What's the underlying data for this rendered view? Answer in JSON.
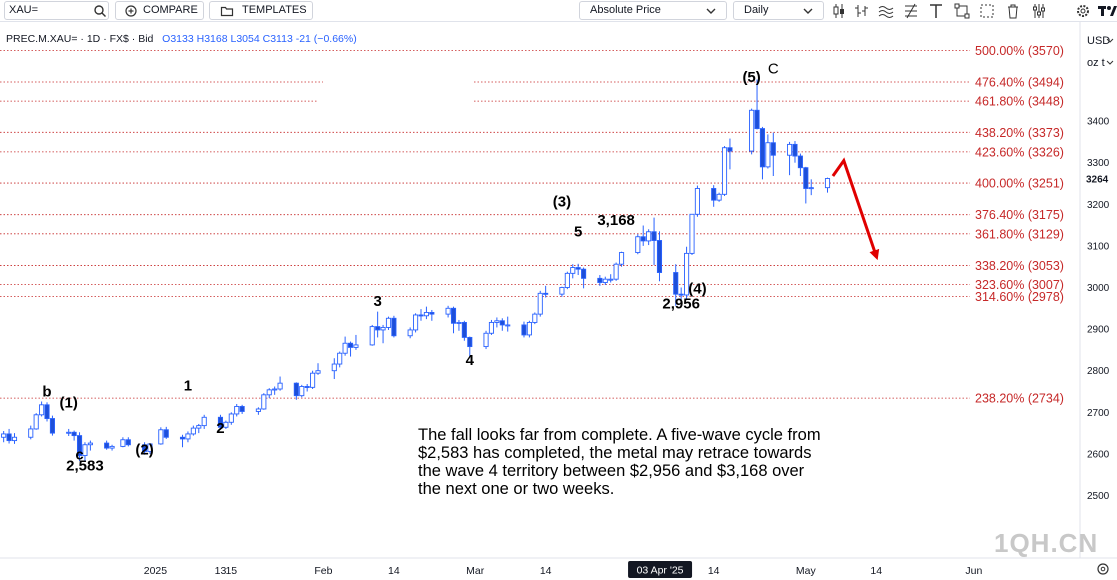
{
  "toolbar": {
    "symbol": "XAU=",
    "compare_label": "COMPARE",
    "templates_label": "TEMPLATES",
    "price_mode": "Absolute Price",
    "interval": "Daily",
    "currency": "USD",
    "unit": "oz t"
  },
  "legend": {
    "symbol": "PREC.M.XAU=",
    "interval": "1D",
    "source": "FX$",
    "side": "Bid",
    "open": "O3133",
    "high": "H3168",
    "low": "L3054",
    "close": "C3113",
    "change": "-21 (−0.66%)"
  },
  "note": {
    "line1": "The fall looks far from complete.  A five-wave cycle from",
    "line2": "$2,583 has completed, the metal may retrace towards",
    "line3": "the wave 4 territory between $2,956 and $3,168 over",
    "line4": "the next one or two weeks."
  },
  "watermark": "1QH.CN",
  "chart_data": {
    "type": "candlestick",
    "y_axis": {
      "range": [
        2520,
        3620
      ],
      "ticks": [
        2500,
        2600,
        2700,
        2800,
        2900,
        3000,
        3100,
        3200,
        3300,
        3400
      ],
      "last_price_label": "3264"
    },
    "x_axis": {
      "ticks": [
        {
          "label": "13",
          "x_date": "2025-01-13"
        },
        {
          "label": "2025",
          "x_date": "2025-01-01"
        },
        {
          "label": "15",
          "x_date": "2025-01-15"
        },
        {
          "label": "Feb",
          "x_date": "2025-02-01"
        },
        {
          "label": "14",
          "x_date": "2025-02-14"
        },
        {
          "label": "Mar",
          "x_date": "2025-03-01"
        },
        {
          "label": "14",
          "x_date": "2025-03-14"
        },
        {
          "label": "03 Apr '25",
          "x_date": "2025-04-03"
        },
        {
          "label": "14",
          "x_date": "2025-04-14"
        },
        {
          "label": "May",
          "x_date": "2025-05-01"
        },
        {
          "label": "14",
          "x_date": "2025-05-14"
        },
        {
          "label": "Jun",
          "x_date": "2025-06-01"
        }
      ]
    },
    "fib_levels": [
      {
        "label": "500.00% (3570)",
        "price": 3570
      },
      {
        "label": "476.40% (3494)",
        "price": 3494
      },
      {
        "label": "461.80% (3448)",
        "price": 3448
      },
      {
        "label": "438.20% (3373)",
        "price": 3373
      },
      {
        "label": "423.60% (3326)",
        "price": 3326
      },
      {
        "label": "400.00% (3251)",
        "price": 3251
      },
      {
        "label": "376.40% (3175)",
        "price": 3175
      },
      {
        "label": "361.80% (3129)",
        "price": 3129
      },
      {
        "label": "338.20% (3053)",
        "price": 3053
      },
      {
        "label": "323.60% (3007)",
        "price": 3007
      },
      {
        "label": "314.60% (2978)",
        "price": 2978
      },
      {
        "label": "238.20% (2734)",
        "price": 2734
      }
    ],
    "wave_labels": [
      {
        "text": "b",
        "date": "2024-12-12",
        "price": 2738
      },
      {
        "text": "(1)",
        "date": "2024-12-16",
        "price": 2712
      },
      {
        "text": "c",
        "date": "2024-12-18",
        "price": 2587
      },
      {
        "text": "2,583",
        "date": "2024-12-19",
        "price": 2560
      },
      {
        "text": "(2)",
        "date": "2024-12-30",
        "price": 2598
      },
      {
        "text": "1",
        "date": "2025-01-07",
        "price": 2752
      },
      {
        "text": "2",
        "date": "2025-01-13",
        "price": 2650
      },
      {
        "text": "3",
        "date": "2025-02-11",
        "price": 2955
      },
      {
        "text": "4",
        "date": "2025-02-28",
        "price": 2814
      },
      {
        "text": "(3)",
        "date": "2025-03-17",
        "price": 3195
      },
      {
        "text": "5",
        "date": "2025-03-20",
        "price": 3122
      },
      {
        "text": "3,168",
        "date": "2025-03-27",
        "price": 3150
      },
      {
        "text": "2,956",
        "date": "2025-04-08",
        "price": 2950
      },
      {
        "text": "(4)",
        "date": "2025-04-11",
        "price": 2985
      },
      {
        "text": "(5)",
        "date": "2025-04-21",
        "price": 3494
      },
      {
        "text": "C",
        "date": "2025-04-25",
        "price": 3515
      }
    ],
    "candles": [
      {
        "d": "2024-12-04",
        "o": 2640,
        "h": 2655,
        "l": 2628,
        "c": 2648
      },
      {
        "d": "2024-12-05",
        "o": 2648,
        "h": 2660,
        "l": 2625,
        "c": 2632
      },
      {
        "d": "2024-12-06",
        "o": 2632,
        "h": 2650,
        "l": 2624,
        "c": 2640
      },
      {
        "d": "2024-12-09",
        "o": 2640,
        "h": 2668,
        "l": 2635,
        "c": 2660
      },
      {
        "d": "2024-12-10",
        "o": 2660,
        "h": 2698,
        "l": 2658,
        "c": 2694
      },
      {
        "d": "2024-12-11",
        "o": 2694,
        "h": 2726,
        "l": 2690,
        "c": 2718
      },
      {
        "d": "2024-12-12",
        "o": 2718,
        "h": 2724,
        "l": 2678,
        "c": 2685
      },
      {
        "d": "2024-12-13",
        "o": 2685,
        "h": 2692,
        "l": 2644,
        "c": 2650
      },
      {
        "d": "2024-12-16",
        "o": 2650,
        "h": 2660,
        "l": 2643,
        "c": 2652
      },
      {
        "d": "2024-12-17",
        "o": 2652,
        "h": 2656,
        "l": 2632,
        "c": 2644
      },
      {
        "d": "2024-12-18",
        "o": 2644,
        "h": 2652,
        "l": 2583,
        "c": 2596
      },
      {
        "d": "2024-12-19",
        "o": 2596,
        "h": 2628,
        "l": 2584,
        "c": 2622
      },
      {
        "d": "2024-12-20",
        "o": 2622,
        "h": 2632,
        "l": 2608,
        "c": 2626
      },
      {
        "d": "2024-12-23",
        "o": 2626,
        "h": 2632,
        "l": 2610,
        "c": 2614
      },
      {
        "d": "2024-12-24",
        "o": 2614,
        "h": 2622,
        "l": 2608,
        "c": 2618
      },
      {
        "d": "2024-12-26",
        "o": 2618,
        "h": 2640,
        "l": 2616,
        "c": 2634
      },
      {
        "d": "2024-12-27",
        "o": 2634,
        "h": 2640,
        "l": 2618,
        "c": 2622
      },
      {
        "d": "2024-12-30",
        "o": 2622,
        "h": 2628,
        "l": 2598,
        "c": 2606
      },
      {
        "d": "2024-12-31",
        "o": 2606,
        "h": 2626,
        "l": 2600,
        "c": 2624
      },
      {
        "d": "2025-01-02",
        "o": 2624,
        "h": 2664,
        "l": 2622,
        "c": 2658
      },
      {
        "d": "2025-01-03",
        "o": 2658,
        "h": 2665,
        "l": 2636,
        "c": 2640
      },
      {
        "d": "2025-01-06",
        "o": 2640,
        "h": 2646,
        "l": 2616,
        "c": 2636
      },
      {
        "d": "2025-01-07",
        "o": 2636,
        "h": 2654,
        "l": 2628,
        "c": 2648
      },
      {
        "d": "2025-01-08",
        "o": 2648,
        "h": 2668,
        "l": 2644,
        "c": 2662
      },
      {
        "d": "2025-01-09",
        "o": 2662,
        "h": 2672,
        "l": 2650,
        "c": 2668
      },
      {
        "d": "2025-01-10",
        "o": 2668,
        "h": 2694,
        "l": 2660,
        "c": 2688
      },
      {
        "d": "2025-01-13",
        "o": 2688,
        "h": 2694,
        "l": 2660,
        "c": 2664
      },
      {
        "d": "2025-01-14",
        "o": 2664,
        "h": 2680,
        "l": 2660,
        "c": 2676
      },
      {
        "d": "2025-01-15",
        "o": 2676,
        "h": 2700,
        "l": 2670,
        "c": 2696
      },
      {
        "d": "2025-01-16",
        "o": 2696,
        "h": 2720,
        "l": 2690,
        "c": 2714
      },
      {
        "d": "2025-01-17",
        "o": 2714,
        "h": 2718,
        "l": 2696,
        "c": 2702
      },
      {
        "d": "2025-01-20",
        "o": 2702,
        "h": 2712,
        "l": 2694,
        "c": 2708
      },
      {
        "d": "2025-01-21",
        "o": 2708,
        "h": 2746,
        "l": 2706,
        "c": 2742
      },
      {
        "d": "2025-01-22",
        "o": 2742,
        "h": 2758,
        "l": 2734,
        "c": 2754
      },
      {
        "d": "2025-01-23",
        "o": 2754,
        "h": 2762,
        "l": 2742,
        "c": 2756
      },
      {
        "d": "2025-01-24",
        "o": 2756,
        "h": 2786,
        "l": 2752,
        "c": 2770
      },
      {
        "d": "2025-01-27",
        "o": 2770,
        "h": 2772,
        "l": 2730,
        "c": 2740
      },
      {
        "d": "2025-01-28",
        "o": 2740,
        "h": 2766,
        "l": 2736,
        "c": 2762
      },
      {
        "d": "2025-01-29",
        "o": 2762,
        "h": 2768,
        "l": 2750,
        "c": 2760
      },
      {
        "d": "2025-01-30",
        "o": 2760,
        "h": 2800,
        "l": 2756,
        "c": 2794
      },
      {
        "d": "2025-01-31",
        "o": 2794,
        "h": 2818,
        "l": 2790,
        "c": 2800
      },
      {
        "d": "2025-02-03",
        "o": 2800,
        "h": 2830,
        "l": 2780,
        "c": 2816
      },
      {
        "d": "2025-02-04",
        "o": 2816,
        "h": 2846,
        "l": 2808,
        "c": 2842
      },
      {
        "d": "2025-02-05",
        "o": 2842,
        "h": 2882,
        "l": 2836,
        "c": 2866
      },
      {
        "d": "2025-02-06",
        "o": 2866,
        "h": 2870,
        "l": 2834,
        "c": 2856
      },
      {
        "d": "2025-02-07",
        "o": 2856,
        "h": 2886,
        "l": 2850,
        "c": 2862
      },
      {
        "d": "2025-02-10",
        "o": 2862,
        "h": 2910,
        "l": 2860,
        "c": 2906
      },
      {
        "d": "2025-02-11",
        "o": 2906,
        "h": 2942,
        "l": 2880,
        "c": 2898
      },
      {
        "d": "2025-02-12",
        "o": 2898,
        "h": 2910,
        "l": 2866,
        "c": 2904
      },
      {
        "d": "2025-02-13",
        "o": 2904,
        "h": 2930,
        "l": 2898,
        "c": 2926
      },
      {
        "d": "2025-02-14",
        "o": 2926,
        "h": 2932,
        "l": 2880,
        "c": 2884
      },
      {
        "d": "2025-02-17",
        "o": 2884,
        "h": 2904,
        "l": 2878,
        "c": 2898
      },
      {
        "d": "2025-02-18",
        "o": 2898,
        "h": 2938,
        "l": 2892,
        "c": 2934
      },
      {
        "d": "2025-02-19",
        "o": 2934,
        "h": 2948,
        "l": 2920,
        "c": 2932
      },
      {
        "d": "2025-02-20",
        "o": 2932,
        "h": 2954,
        "l": 2924,
        "c": 2940
      },
      {
        "d": "2025-02-21",
        "o": 2940,
        "h": 2946,
        "l": 2920,
        "c": 2936
      },
      {
        "d": "2025-02-24",
        "o": 2936,
        "h": 2956,
        "l": 2928,
        "c": 2950
      },
      {
        "d": "2025-02-25",
        "o": 2950,
        "h": 2954,
        "l": 2890,
        "c": 2914
      },
      {
        "d": "2025-02-26",
        "o": 2914,
        "h": 2922,
        "l": 2896,
        "c": 2916
      },
      {
        "d": "2025-02-27",
        "o": 2916,
        "h": 2920,
        "l": 2872,
        "c": 2880
      },
      {
        "d": "2025-02-28",
        "o": 2880,
        "h": 2882,
        "l": 2832,
        "c": 2858
      },
      {
        "d": "2025-03-03",
        "o": 2858,
        "h": 2896,
        "l": 2852,
        "c": 2890
      },
      {
        "d": "2025-03-04",
        "o": 2890,
        "h": 2922,
        "l": 2886,
        "c": 2916
      },
      {
        "d": "2025-03-05",
        "o": 2916,
        "h": 2928,
        "l": 2904,
        "c": 2920
      },
      {
        "d": "2025-03-06",
        "o": 2920,
        "h": 2926,
        "l": 2896,
        "c": 2910
      },
      {
        "d": "2025-03-07",
        "o": 2910,
        "h": 2930,
        "l": 2894,
        "c": 2910
      },
      {
        "d": "2025-03-10",
        "o": 2910,
        "h": 2918,
        "l": 2880,
        "c": 2886
      },
      {
        "d": "2025-03-11",
        "o": 2886,
        "h": 2920,
        "l": 2880,
        "c": 2916
      },
      {
        "d": "2025-03-12",
        "o": 2916,
        "h": 2940,
        "l": 2912,
        "c": 2936
      },
      {
        "d": "2025-03-13",
        "o": 2936,
        "h": 2992,
        "l": 2930,
        "c": 2986
      },
      {
        "d": "2025-03-14",
        "o": 2986,
        "h": 3004,
        "l": 2976,
        "c": 2984
      },
      {
        "d": "2025-03-17",
        "o": 2984,
        "h": 3002,
        "l": 2978,
        "c": 3000
      },
      {
        "d": "2025-03-18",
        "o": 3000,
        "h": 3038,
        "l": 2996,
        "c": 3034
      },
      {
        "d": "2025-03-19",
        "o": 3034,
        "h": 3056,
        "l": 3022,
        "c": 3048
      },
      {
        "d": "2025-03-20",
        "o": 3048,
        "h": 3057,
        "l": 3030,
        "c": 3044
      },
      {
        "d": "2025-03-21",
        "o": 3044,
        "h": 3048,
        "l": 2998,
        "c": 3022
      },
      {
        "d": "2025-03-24",
        "o": 3022,
        "h": 3030,
        "l": 3004,
        "c": 3012
      },
      {
        "d": "2025-03-25",
        "o": 3012,
        "h": 3026,
        "l": 3006,
        "c": 3020
      },
      {
        "d": "2025-03-26",
        "o": 3020,
        "h": 3032,
        "l": 3012,
        "c": 3020
      },
      {
        "d": "2025-03-27",
        "o": 3020,
        "h": 3060,
        "l": 3016,
        "c": 3056
      },
      {
        "d": "2025-03-28",
        "o": 3056,
        "h": 3086,
        "l": 3050,
        "c": 3084
      },
      {
        "d": "2025-03-31",
        "o": 3084,
        "h": 3128,
        "l": 3080,
        "c": 3122
      },
      {
        "d": "2025-04-01",
        "o": 3122,
        "h": 3149,
        "l": 3100,
        "c": 3112
      },
      {
        "d": "2025-04-02",
        "o": 3112,
        "h": 3140,
        "l": 3102,
        "c": 3134
      },
      {
        "d": "2025-04-03",
        "o": 3134,
        "h": 3168,
        "l": 3054,
        "c": 3113
      },
      {
        "d": "2025-04-04",
        "o": 3113,
        "h": 3135,
        "l": 3015,
        "c": 3036
      },
      {
        "d": "2025-04-07",
        "o": 3036,
        "h": 3056,
        "l": 2956,
        "c": 2984
      },
      {
        "d": "2025-04-08",
        "o": 2984,
        "h": 3000,
        "l": 2970,
        "c": 2982
      },
      {
        "d": "2025-04-09",
        "o": 2982,
        "h": 3098,
        "l": 2970,
        "c": 3082
      },
      {
        "d": "2025-04-10",
        "o": 3082,
        "h": 3176,
        "l": 3078,
        "c": 3176
      },
      {
        "d": "2025-04-11",
        "o": 3176,
        "h": 3245,
        "l": 3170,
        "c": 3238
      },
      {
        "d": "2025-04-14",
        "o": 3238,
        "h": 3246,
        "l": 3194,
        "c": 3210
      },
      {
        "d": "2025-04-15",
        "o": 3210,
        "h": 3228,
        "l": 3206,
        "c": 3224
      },
      {
        "d": "2025-04-16",
        "o": 3224,
        "h": 3340,
        "l": 3220,
        "c": 3336
      },
      {
        "d": "2025-04-17",
        "o": 3336,
        "h": 3358,
        "l": 3284,
        "c": 3328
      },
      {
        "d": "2025-04-21",
        "o": 3328,
        "h": 3430,
        "l": 3320,
        "c": 3426
      },
      {
        "d": "2025-04-22",
        "o": 3426,
        "h": 3500,
        "l": 3380,
        "c": 3382
      },
      {
        "d": "2025-04-23",
        "o": 3382,
        "h": 3386,
        "l": 3260,
        "c": 3290
      },
      {
        "d": "2025-04-24",
        "o": 3290,
        "h": 3368,
        "l": 3286,
        "c": 3348
      },
      {
        "d": "2025-04-25",
        "o": 3348,
        "h": 3372,
        "l": 3268,
        "c": 3318
      },
      {
        "d": "2025-04-28",
        "o": 3318,
        "h": 3350,
        "l": 3270,
        "c": 3344
      },
      {
        "d": "2025-04-29",
        "o": 3344,
        "h": 3352,
        "l": 3300,
        "c": 3316
      },
      {
        "d": "2025-04-30",
        "o": 3316,
        "h": 3322,
        "l": 3268,
        "c": 3288
      },
      {
        "d": "2025-05-01",
        "o": 3288,
        "h": 3290,
        "l": 3202,
        "c": 3238
      },
      {
        "d": "2025-05-02",
        "o": 3238,
        "h": 3260,
        "l": 3222,
        "c": 3240
      },
      {
        "d": "2025-05-05",
        "o": 3240,
        "h": 3264,
        "l": 3228,
        "c": 3262
      }
    ],
    "forecast_arrow": [
      {
        "date": "2025-05-06",
        "price": 3268
      },
      {
        "date": "2025-05-08",
        "price": 3305
      },
      {
        "date": "2025-05-14",
        "price": 3075
      }
    ]
  }
}
